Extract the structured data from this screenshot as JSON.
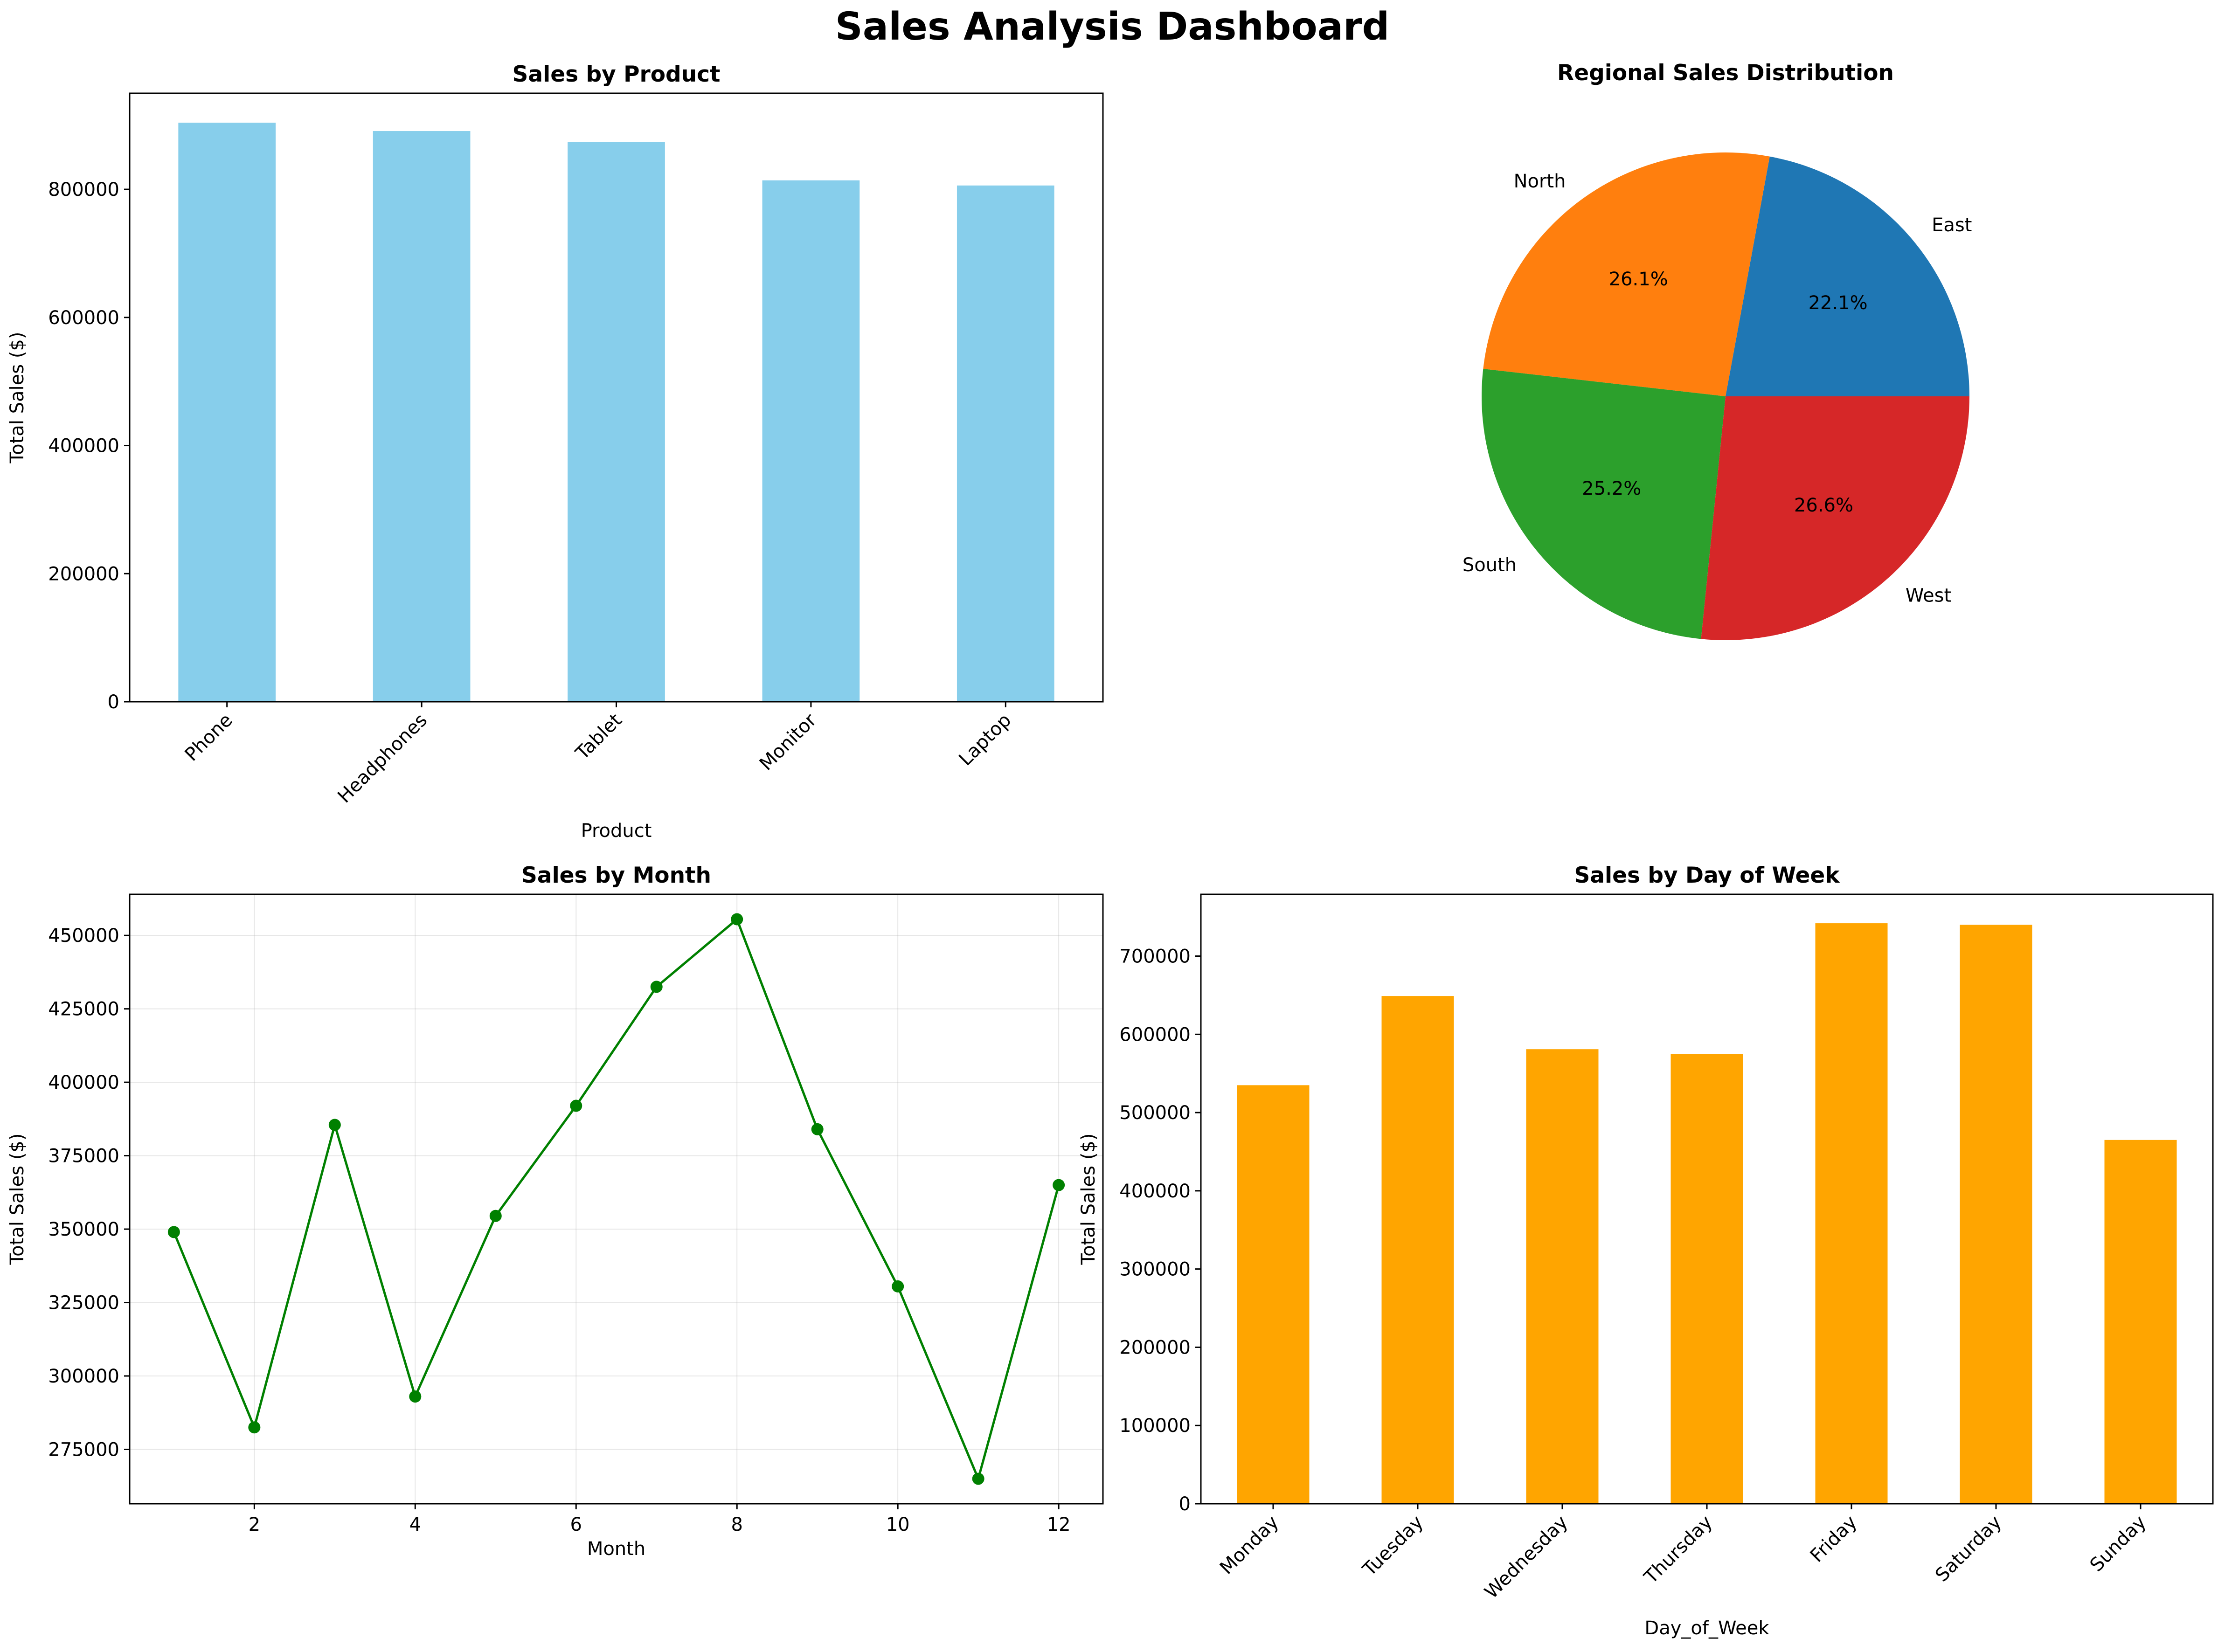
{
  "title": "Sales Analysis Dashboard",
  "colors": {
    "product_bar": "#87ceeb",
    "day_bar": "#ffa500",
    "month_line": "#008000",
    "pie": [
      "#1f77b4",
      "#ff7f0e",
      "#2ca02c",
      "#d62728"
    ]
  },
  "chart_data": [
    {
      "type": "bar",
      "title": "Sales by Product",
      "xlabel": "Product",
      "ylabel": "Total Sales ($)",
      "categories": [
        "Phone",
        "Headphones",
        "Tablet",
        "Monitor",
        "Laptop"
      ],
      "values": [
        904000,
        891000,
        874000,
        814000,
        806000
      ],
      "ylim": [
        0,
        950000
      ],
      "yticks": [
        0,
        200000,
        400000,
        600000,
        800000
      ],
      "ytick_labels": [
        "0",
        "200000",
        "400000",
        "600000",
        "800000"
      ],
      "grid": false,
      "xtick_rotation": 45
    },
    {
      "type": "pie",
      "title": "Regional Sales Distribution",
      "labels": [
        "East",
        "North",
        "South",
        "West"
      ],
      "values": [
        22.1,
        26.1,
        25.2,
        26.6
      ],
      "pct_labels": [
        "22.1%",
        "26.1%",
        "25.2%",
        "26.6%"
      ]
    },
    {
      "type": "line",
      "title": "Sales by Month",
      "xlabel": "Month",
      "ylabel": "Total Sales ($)",
      "x": [
        1,
        2,
        3,
        4,
        5,
        6,
        7,
        8,
        9,
        10,
        11,
        12
      ],
      "values": [
        349000,
        282500,
        385500,
        293000,
        354500,
        392000,
        432500,
        455500,
        384000,
        330500,
        265000,
        365000
      ],
      "xlim": [
        0.45,
        12.55
      ],
      "ylim": [
        256500,
        464000
      ],
      "xticks": [
        2,
        4,
        6,
        8,
        10,
        12
      ],
      "xtick_labels": [
        "2",
        "4",
        "6",
        "8",
        "10",
        "12"
      ],
      "yticks": [
        275000,
        300000,
        325000,
        350000,
        375000,
        400000,
        425000,
        450000
      ],
      "ytick_labels": [
        "275000",
        "300000",
        "325000",
        "350000",
        "375000",
        "400000",
        "425000",
        "450000"
      ],
      "grid": true,
      "marker": "circle"
    },
    {
      "type": "bar",
      "title": "Sales by Day of Week",
      "xlabel": "Day_of_Week",
      "ylabel": "Total Sales ($)",
      "categories": [
        "Monday",
        "Tuesday",
        "Wednesday",
        "Thursday",
        "Friday",
        "Saturday",
        "Sunday"
      ],
      "values": [
        535000,
        649000,
        581000,
        575000,
        742000,
        740000,
        465000
      ],
      "ylim": [
        0,
        779000
      ],
      "yticks": [
        0,
        100000,
        200000,
        300000,
        400000,
        500000,
        600000,
        700000
      ],
      "ytick_labels": [
        "0",
        "100000",
        "200000",
        "300000",
        "400000",
        "500000",
        "600000",
        "700000"
      ],
      "grid": false,
      "xtick_rotation": 45
    }
  ]
}
